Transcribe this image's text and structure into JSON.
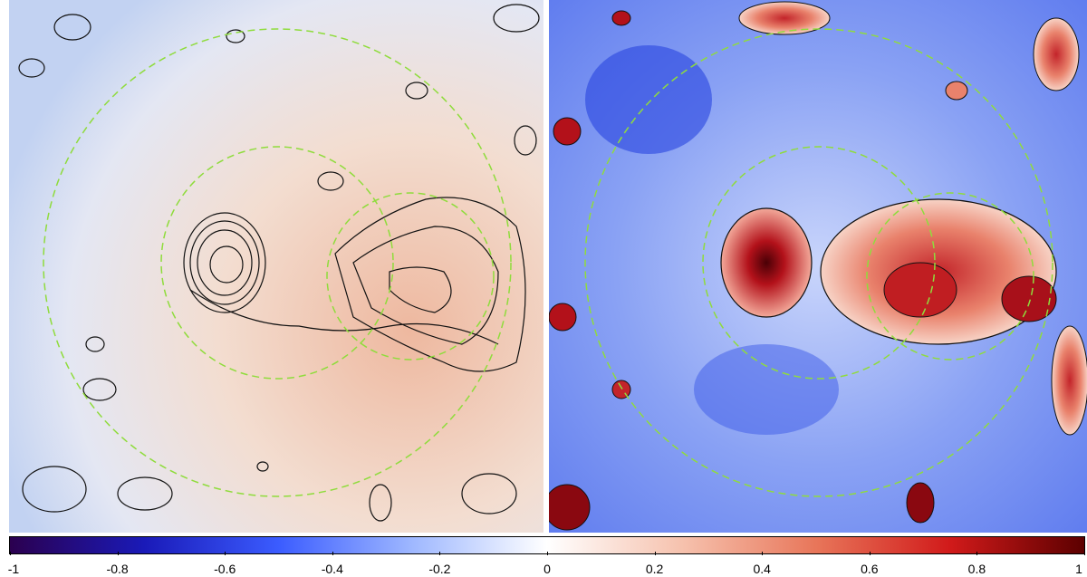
{
  "colormap": {
    "colors": [
      "#2b004f",
      "#1a1ab8",
      "#3b5cff",
      "#9fb8ff",
      "#ffffff",
      "#f6c2ae",
      "#e8765a",
      "#d11a1a",
      "#5c0000"
    ],
    "ticks": [
      "-1",
      "-0.8",
      "-0.6",
      "-0.4",
      "-0.2",
      "0",
      "0.2",
      "0.4",
      "0.6",
      "0.8",
      "1"
    ]
  },
  "overlay": {
    "circle_color": "#8fdc3c",
    "contour_color": "#111111"
  },
  "panels": [
    {
      "name": "smoothed-map",
      "background_colors": [
        "#c7d6f5",
        "#f3ddd0",
        "#f0c0aa"
      ]
    },
    {
      "name": "residual-map",
      "background_colors": [
        "#2f52e6",
        "#d8e1fb",
        "#c92a20",
        "#5a0008"
      ]
    }
  ]
}
